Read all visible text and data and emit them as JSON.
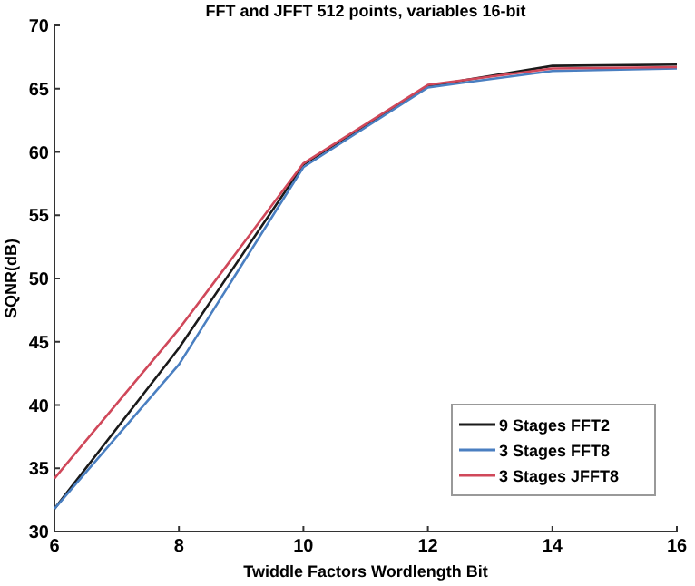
{
  "chart_data": {
    "type": "line",
    "title": "FFT and JFFT 512 points, variables 16-bit",
    "xlabel": "Twiddle Factors Wordlength Bit",
    "ylabel": "SQNR(dB)",
    "x": [
      6,
      8,
      10,
      12,
      14,
      16
    ],
    "series": [
      {
        "name": "9 Stages FFT2",
        "color": "#1a1a1a",
        "values": [
          31.8,
          44.5,
          59,
          65.2,
          66.8,
          66.9
        ]
      },
      {
        "name": "3 Stages FFT8",
        "color": "#4a7fc1",
        "values": [
          31.8,
          43.2,
          58.8,
          65.1,
          66.4,
          66.6
        ]
      },
      {
        "name": "3 Stages JFFT8",
        "color": "#d0485a",
        "values": [
          34.2,
          46,
          59.1,
          65.3,
          66.6,
          66.7
        ]
      }
    ],
    "xlim": [
      6,
      16
    ],
    "xticks": [
      6,
      8,
      10,
      12,
      14,
      16
    ],
    "ylim": [
      30,
      70
    ],
    "yticks": [
      30,
      35,
      40,
      45,
      50,
      55,
      60,
      65,
      70
    ],
    "legend": "bottom right",
    "grid": false
  }
}
